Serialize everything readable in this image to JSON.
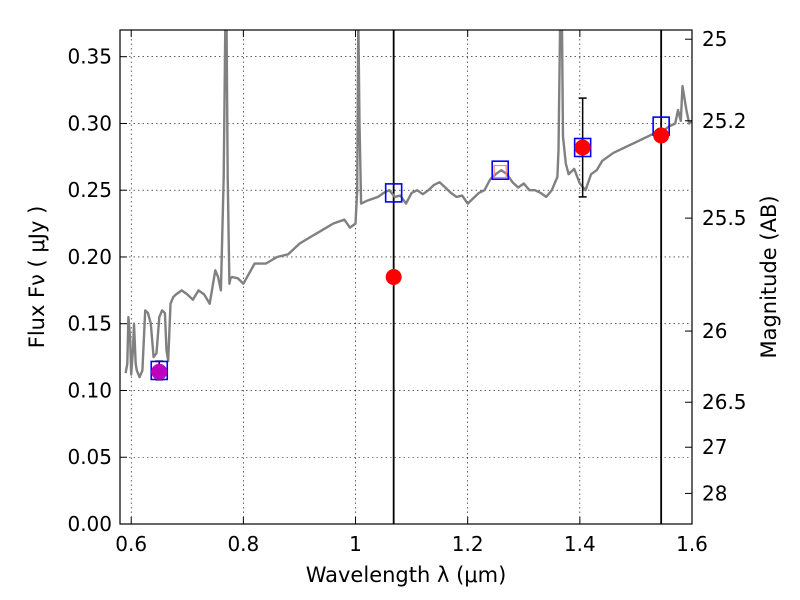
{
  "chart_data": {
    "type": "line",
    "xlabel": "Wavelength  λ (μm)",
    "ylabel": "Flux  Fν  ( μJy )",
    "y2label": "Magnitude (AB)",
    "xlim": [
      0.58,
      1.6
    ],
    "ylim": [
      0.0,
      0.37
    ],
    "grid": true,
    "xticks": [
      0.6,
      0.8,
      1.0,
      1.2,
      1.4,
      1.6
    ],
    "xtick_labels": [
      "0.6",
      "0.8",
      "1",
      "1.2",
      "1.4",
      "1.6"
    ],
    "yticks": [
      0.0,
      0.05,
      0.1,
      0.15,
      0.2,
      0.25,
      0.3,
      0.35
    ],
    "ytick_labels": [
      "0.00",
      "0.05",
      "0.10",
      "0.15",
      "0.20",
      "0.25",
      "0.30",
      "0.35"
    ],
    "mag_ticks": [
      {
        "label": "25",
        "flux": 0.3631
      },
      {
        "label": "25.2",
        "flux": 0.302
      },
      {
        "label": "25.5",
        "flux": 0.2291
      },
      {
        "label": "26",
        "flux": 0.1445
      },
      {
        "label": "26.5",
        "flux": 0.0912
      },
      {
        "label": "27",
        "flux": 0.0575
      },
      {
        "label": "28",
        "flux": 0.0229
      }
    ],
    "vlines": [
      1.068,
      1.545
    ],
    "spectrum": {
      "name": "model spectrum",
      "color": "#808080",
      "x": [
        0.59,
        0.593,
        0.595,
        0.598,
        0.6,
        0.603,
        0.605,
        0.608,
        0.61,
        0.615,
        0.62,
        0.625,
        0.63,
        0.635,
        0.64,
        0.645,
        0.65,
        0.655,
        0.66,
        0.663,
        0.666,
        0.67,
        0.675,
        0.68,
        0.69,
        0.7,
        0.71,
        0.72,
        0.73,
        0.74,
        0.75,
        0.755,
        0.76,
        0.765,
        0.768,
        0.77,
        0.772,
        0.775,
        0.777,
        0.78,
        0.79,
        0.8,
        0.82,
        0.84,
        0.86,
        0.88,
        0.9,
        0.92,
        0.94,
        0.96,
        0.98,
        0.99,
        1.0,
        1.003,
        1.005,
        1.007,
        1.01,
        1.02,
        1.04,
        1.05,
        1.06,
        1.07,
        1.08,
        1.09,
        1.1,
        1.11,
        1.12,
        1.13,
        1.14,
        1.15,
        1.16,
        1.17,
        1.18,
        1.19,
        1.2,
        1.21,
        1.22,
        1.23,
        1.24,
        1.25,
        1.26,
        1.27,
        1.28,
        1.29,
        1.3,
        1.31,
        1.32,
        1.33,
        1.34,
        1.35,
        1.36,
        1.362,
        1.365,
        1.368,
        1.37,
        1.375,
        1.38,
        1.39,
        1.4,
        1.41,
        1.42,
        1.43,
        1.44,
        1.45,
        1.46,
        1.47,
        1.48,
        1.49,
        1.5,
        1.51,
        1.52,
        1.53,
        1.54,
        1.55,
        1.56,
        1.57,
        1.575,
        1.58,
        1.583,
        1.59,
        1.595,
        1.6
      ],
      "y": [
        0.113,
        0.12,
        0.155,
        0.14,
        0.112,
        0.13,
        0.15,
        0.12,
        0.115,
        0.11,
        0.115,
        0.16,
        0.158,
        0.15,
        0.125,
        0.128,
        0.155,
        0.16,
        0.158,
        0.13,
        0.122,
        0.165,
        0.17,
        0.172,
        0.175,
        0.172,
        0.168,
        0.175,
        0.172,
        0.165,
        0.19,
        0.185,
        0.175,
        0.26,
        0.38,
        0.38,
        0.26,
        0.18,
        0.184,
        0.185,
        0.184,
        0.18,
        0.195,
        0.195,
        0.2,
        0.202,
        0.21,
        0.215,
        0.22,
        0.225,
        0.228,
        0.222,
        0.225,
        0.25,
        0.38,
        0.3,
        0.24,
        0.242,
        0.245,
        0.248,
        0.25,
        0.245,
        0.246,
        0.24,
        0.248,
        0.25,
        0.247,
        0.25,
        0.254,
        0.256,
        0.252,
        0.248,
        0.245,
        0.246,
        0.24,
        0.244,
        0.248,
        0.25,
        0.258,
        0.262,
        0.265,
        0.262,
        0.256,
        0.252,
        0.255,
        0.25,
        0.25,
        0.248,
        0.245,
        0.25,
        0.26,
        0.28,
        0.38,
        0.38,
        0.29,
        0.27,
        0.262,
        0.266,
        0.255,
        0.25,
        0.262,
        0.265,
        0.272,
        0.275,
        0.278,
        0.28,
        0.282,
        0.284,
        0.286,
        0.288,
        0.29,
        0.292,
        0.296,
        0.295,
        0.298,
        0.3,
        0.31,
        0.302,
        0.328,
        0.31,
        0.3,
        0.302
      ]
    },
    "markers": [
      {
        "name": "blue-square",
        "color": "#0000ff",
        "shape": "square-open",
        "points": [
          {
            "x": 0.65,
            "y": 0.115
          },
          {
            "x": 1.068,
            "y": 0.248
          },
          {
            "x": 1.258,
            "y": 0.265
          },
          {
            "x": 1.405,
            "y": 0.282
          },
          {
            "x": 1.545,
            "y": 0.298
          }
        ]
      },
      {
        "name": "red-dot",
        "color": "#ff0000",
        "shape": "circle",
        "points": [
          {
            "x": 1.068,
            "y": 0.185
          },
          {
            "x": 1.405,
            "y": 0.282
          },
          {
            "x": 1.545,
            "y": 0.291
          }
        ]
      },
      {
        "name": "purple-dot",
        "color": "#bf00bf",
        "shape": "circle",
        "points": [
          {
            "x": 0.65,
            "y": 0.114
          }
        ]
      },
      {
        "name": "pink-square",
        "color": "#ff8080",
        "shape": "square-open-small",
        "points": [
          {
            "x": 1.258,
            "y": 0.264
          }
        ]
      }
    ],
    "errorbars": [
      {
        "x": 0.65,
        "y": 0.115,
        "low": 0.108,
        "high": 0.122
      },
      {
        "x": 1.405,
        "y": 0.282,
        "low": 0.245,
        "high": 0.319
      }
    ]
  }
}
